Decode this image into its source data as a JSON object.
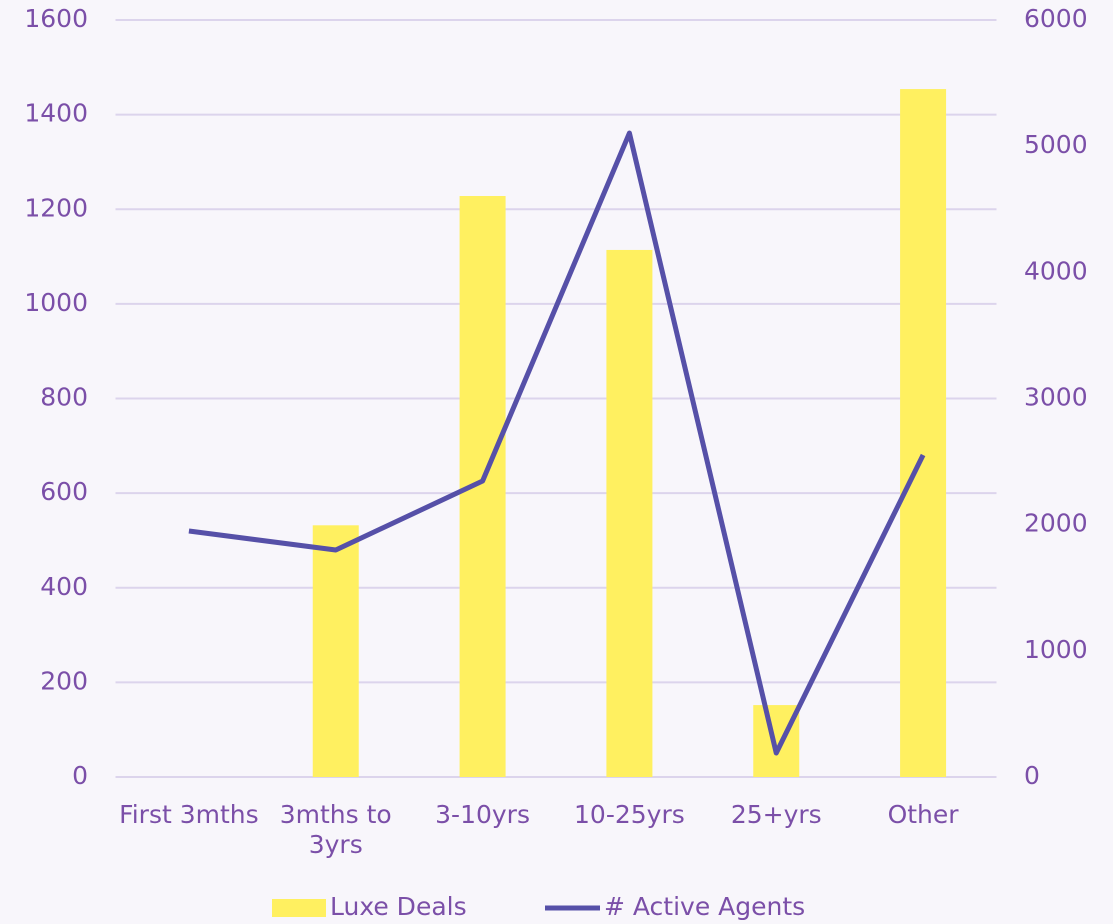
{
  "chart_data": {
    "type": "bar_line",
    "categories": [
      "First 3mths",
      "3mths to 3yrs",
      "3-10yrs",
      "10-25yrs",
      "25+yrs",
      "Other"
    ],
    "series": [
      {
        "name": "Luxe Deals",
        "type": "bar",
        "color": "#fff060",
        "values": [
          0,
          532,
          1228,
          1114,
          152,
          1454
        ]
      },
      {
        "name": "# Active Agents",
        "type": "line",
        "axis": "y2",
        "color": "#5650a8",
        "values": [
          1950,
          1799,
          2346,
          5104,
          190,
          2552
        ]
      }
    ],
    "ylim": [
      0,
      1600
    ],
    "yticks": [
      0,
      200,
      400,
      600,
      800,
      1000,
      1200,
      1400,
      1600
    ],
    "y2lim": [
      0,
      6000
    ],
    "y2ticks": [
      0,
      1000,
      2000,
      3000,
      4000,
      5000,
      6000
    ],
    "grid": true,
    "legend": "bottom"
  }
}
